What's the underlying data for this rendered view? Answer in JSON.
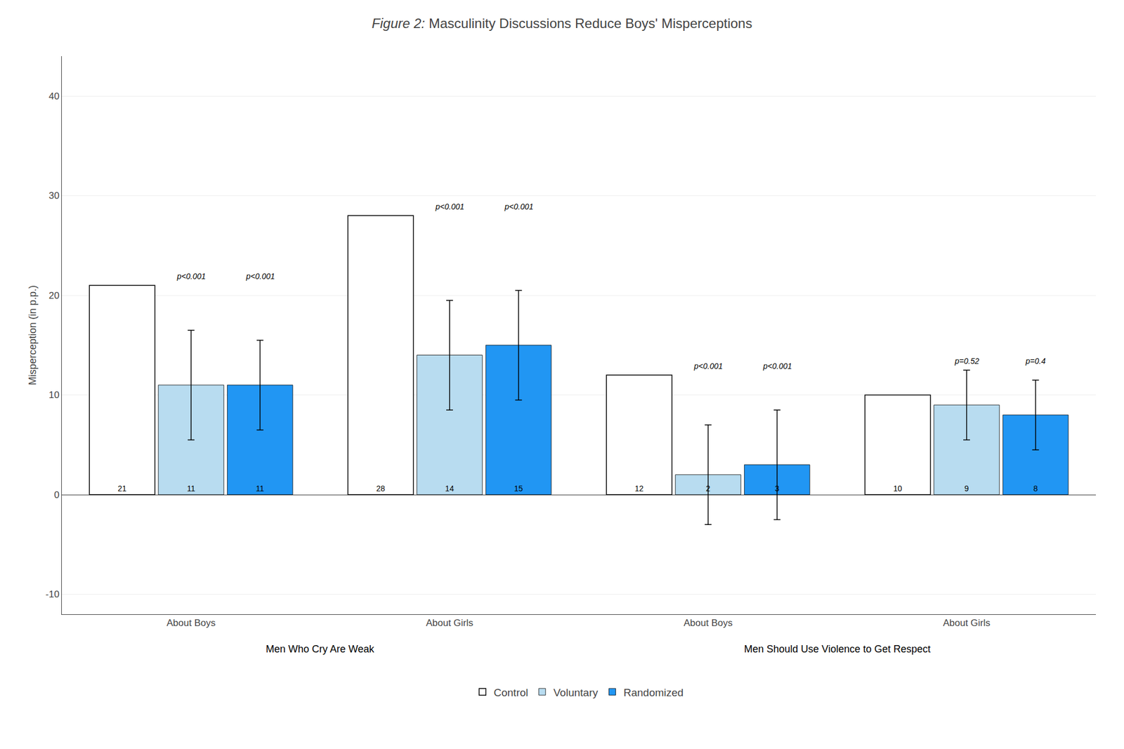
{
  "chart_data": {
    "type": "bar",
    "title": "Figure 2: Masculinity Discussions Reduce Boys' Misperceptions",
    "ylabel": "Misperception (in p.p.)",
    "categories": [
      [
        "Men Who Cry Are Weak",
        "About Boys"
      ],
      [
        "Men Who Cry Are Weak",
        "About Girls"
      ],
      [
        "Men Should Use Violence to Get Respect",
        "About Boys"
      ],
      [
        "Men Should Use Violence to Get Respect",
        "About Girls"
      ]
    ],
    "series": [
      {
        "name": "Control",
        "color": "#ffffff",
        "values": [
          21,
          28,
          12,
          10
        ]
      },
      {
        "name": "Voluntary",
        "color": "#B8DCF0",
        "values": [
          11,
          14,
          2,
          9
        ],
        "errors": [
          5.5,
          5.5,
          5.0,
          3.5
        ],
        "annotations": [
          "p<0.001",
          "p<0.001",
          "p<0.001",
          "p=0.52"
        ]
      },
      {
        "name": "Randomized",
        "color": "#2196F3",
        "values": [
          11,
          15,
          3,
          8
        ],
        "errors": [
          4.5,
          5.5,
          5.5,
          3.5
        ],
        "annotations": [
          "p<0.001",
          "p<0.001",
          "p<0.001",
          "p=0.4"
        ]
      }
    ],
    "ylim": [
      -12,
      44
    ],
    "yticks": [
      -10,
      0,
      10,
      20,
      30,
      40
    ],
    "grid": true,
    "legend": "bottom",
    "data_labels": true
  }
}
